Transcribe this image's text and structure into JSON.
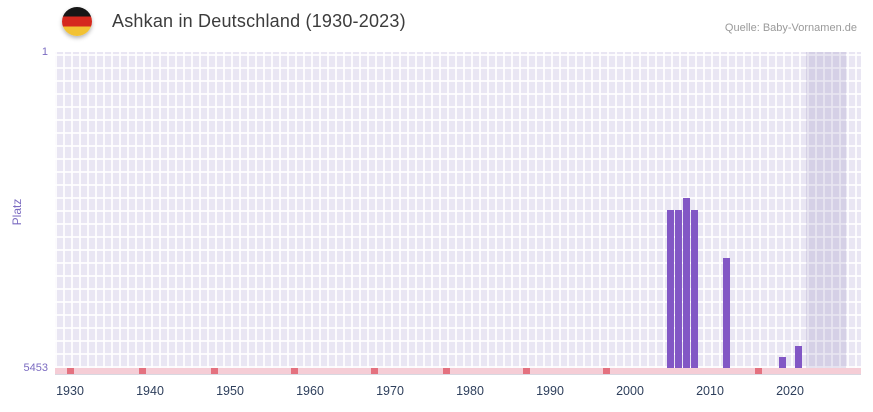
{
  "header": {
    "title": "Ashkan in Deutschland (1930-2023)",
    "source": "Quelle: Baby-Vornamen.de",
    "flag_icon": "german-flag-icon"
  },
  "chart_data": {
    "type": "bar",
    "title": "Ashkan in Deutschland (1930-2023)",
    "ylabel": "Platz",
    "y_axis": {
      "top_label": "1",
      "bottom_label": "5453",
      "min": 1,
      "max": 5453,
      "inverted": true
    },
    "x_axis": {
      "start_year": 1930,
      "end_year": 2023,
      "tick_years": [
        1930,
        1940,
        1950,
        1960,
        1970,
        1980,
        1990,
        2000,
        2010,
        2020
      ]
    },
    "series": [
      {
        "name": "Platz",
        "points": [
          {
            "year": 2005,
            "rank": 2730
          },
          {
            "year": 2006,
            "rank": 2730
          },
          {
            "year": 2007,
            "rank": 2520
          },
          {
            "year": 2008,
            "rank": 2730
          },
          {
            "year": 2012,
            "rank": 3550
          },
          {
            "year": 2019,
            "rank": 5260
          },
          {
            "year": 2021,
            "rank": 5080
          }
        ]
      }
    ],
    "no_rank_years": [
      1930,
      1939,
      1948,
      1958,
      1968,
      1977,
      1987,
      1997,
      2016
    ],
    "highlight_band": {
      "from_year": 2022,
      "to_year": 2027
    },
    "grid": true,
    "legend": "none",
    "colors": {
      "bar": "#8257c5",
      "plot_background": "#e9e6f3",
      "grid_line": "#ffffff",
      "axis_label_purple": "#7b6bc1",
      "x_tick_label": "#2e3f5c",
      "baseline_strip": "#f5cdd6",
      "no_rank_mark": "#e4717f",
      "title_text": "#3c3c3c",
      "source_text": "#9a9a9a"
    }
  }
}
